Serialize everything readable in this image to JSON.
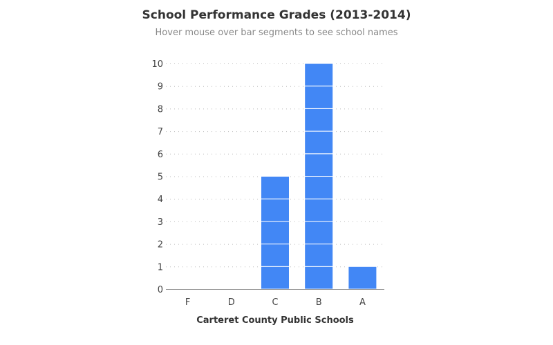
{
  "chart_data": {
    "type": "bar",
    "title": "School Performance Grades (2013-2014)",
    "subtitle": "Hover mouse over bar segments to see school names",
    "xlabel": "Carteret County Public Schools",
    "ylabel": "",
    "categories": [
      "F",
      "D",
      "C",
      "B",
      "A"
    ],
    "values": [
      0,
      0,
      5,
      10,
      1
    ],
    "ylim": [
      0,
      10
    ],
    "yticks": [
      0,
      1,
      2,
      3,
      4,
      5,
      6,
      7,
      8,
      9,
      10
    ],
    "grid": true,
    "stacked_segments": "one segment per school",
    "bar_color": "#4287f5"
  }
}
